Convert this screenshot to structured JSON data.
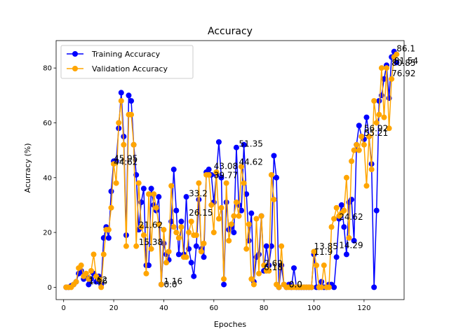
{
  "chart_data": {
    "type": "line",
    "title": "Accuracy",
    "xlabel": "Epoches",
    "ylabel": "Acurracy (%)",
    "xlim": [
      -3,
      136
    ],
    "ylim": [
      -4.5,
      90
    ],
    "x_ticks": [
      0,
      20,
      40,
      60,
      80,
      100,
      120
    ],
    "y_ticks": [
      0,
      20,
      40,
      60,
      80
    ],
    "grid": false,
    "legend_position": "top-left",
    "x": [
      1,
      2,
      3,
      4,
      5,
      6,
      7,
      8,
      9,
      10,
      11,
      12,
      13,
      14,
      15,
      16,
      17,
      18,
      19,
      20,
      21,
      22,
      23,
      24,
      25,
      26,
      27,
      28,
      29,
      30,
      31,
      32,
      33,
      34,
      35,
      36,
      37,
      38,
      39,
      40,
      41,
      42,
      43,
      44,
      45,
      46,
      47,
      48,
      49,
      50,
      51,
      52,
      53,
      54,
      55,
      56,
      57,
      58,
      59,
      60,
      61,
      62,
      63,
      64,
      65,
      66,
      67,
      68,
      69,
      70,
      71,
      72,
      73,
      74,
      75,
      76,
      77,
      78,
      79,
      80,
      81,
      82,
      83,
      84,
      85,
      86,
      87,
      88,
      89,
      90,
      91,
      92,
      93,
      94,
      95,
      96,
      97,
      98,
      99,
      100,
      101,
      102,
      103,
      104,
      105,
      106,
      107,
      108,
      109,
      110,
      111,
      112,
      113,
      114,
      115,
      116,
      117,
      118,
      119,
      120,
      121,
      122,
      123,
      124,
      125,
      126,
      127,
      128,
      129,
      130,
      131,
      132,
      133
    ],
    "series": [
      {
        "name": "Training Accuracy",
        "color": "#0000ff",
        "values": [
          0,
          0,
          0.5,
          1,
          2,
          5,
          6,
          3,
          4,
          1,
          3,
          5,
          2,
          4,
          1,
          18,
          22,
          18,
          35,
          46,
          46,
          58,
          71,
          55,
          19,
          70,
          68,
          52,
          41,
          21,
          31,
          36,
          8,
          8,
          36,
          30,
          28,
          33,
          1,
          16,
          12,
          10,
          24,
          43,
          28,
          12,
          24,
          12,
          33,
          14,
          9,
          4,
          15,
          32,
          14,
          11,
          42,
          43,
          41,
          31,
          41,
          53,
          40,
          1,
          31,
          21,
          22,
          20,
          51,
          30,
          28,
          52,
          34,
          17,
          27,
          2,
          11,
          12,
          26,
          6,
          15,
          8,
          15,
          48,
          40,
          0,
          8,
          1,
          0,
          1,
          0,
          7,
          0,
          0,
          0,
          0,
          0,
          0,
          0,
          12,
          0,
          0,
          2,
          0,
          0,
          1,
          1,
          0,
          11,
          25,
          30,
          22,
          12,
          31,
          32,
          17,
          52,
          59,
          55,
          54,
          62,
          55,
          45,
          0,
          28,
          68,
          70,
          76,
          81,
          69,
          84,
          86,
          82
        ]
      },
      {
        "name": "Validation Accuracy",
        "color": "#ffa500",
        "values": [
          0,
          0,
          0,
          1,
          2,
          7,
          8,
          4,
          5,
          3,
          6,
          12,
          4,
          3,
          0,
          12,
          21,
          21,
          29,
          45,
          38,
          60,
          68,
          52,
          15,
          63,
          63,
          52,
          15,
          38,
          22,
          19,
          5,
          34,
          14,
          34,
          29,
          23,
          1,
          21,
          9,
          13,
          37,
          22,
          20,
          18,
          22,
          11,
          11,
          20,
          24,
          19,
          19,
          38,
          13,
          16,
          41,
          41,
          30,
          20,
          42,
          25,
          29,
          3,
          38,
          17,
          23,
          26,
          31,
          26,
          44,
          38,
          14,
          23,
          3,
          1,
          25,
          5,
          26,
          8,
          6,
          6,
          41,
          32,
          1,
          0,
          15,
          1,
          0,
          0,
          0,
          0,
          0,
          0,
          0,
          0,
          0,
          0,
          0,
          13,
          8,
          0,
          0,
          8,
          0,
          0,
          22,
          25,
          29,
          26,
          27,
          28,
          40,
          18,
          46,
          50,
          52,
          50,
          55,
          52,
          37,
          55,
          43,
          68,
          60,
          63,
          80,
          62,
          80,
          58,
          76,
          84,
          85
        ]
      }
    ],
    "annotations": [
      {
        "text": "86.1",
        "x": 133,
        "y": 86.1
      },
      {
        "text": "81.54",
        "x": 132,
        "y": 81.54
      },
      {
        "text": "80.85",
        "x": 131,
        "y": 80.85
      },
      {
        "text": "76.92",
        "x": 131,
        "y": 76.92
      },
      {
        "text": "56.92",
        "x": 120,
        "y": 56.92
      },
      {
        "text": "55.21",
        "x": 120,
        "y": 55.21
      },
      {
        "text": "51.35",
        "x": 70,
        "y": 51.35
      },
      {
        "text": "45.95",
        "x": 20,
        "y": 45.95
      },
      {
        "text": "44.62",
        "x": 20,
        "y": 44.62
      },
      {
        "text": "44.62",
        "x": 70,
        "y": 44.62
      },
      {
        "text": "43.08",
        "x": 60,
        "y": 43.08
      },
      {
        "text": "39.77",
        "x": 60,
        "y": 39.77
      },
      {
        "text": "33.2",
        "x": 50,
        "y": 33.2
      },
      {
        "text": "26.15",
        "x": 50,
        "y": 26.15
      },
      {
        "text": "24.62",
        "x": 110,
        "y": 24.62
      },
      {
        "text": "21.62",
        "x": 30,
        "y": 21.62
      },
      {
        "text": "15.38",
        "x": 30,
        "y": 15.38
      },
      {
        "text": "14.29",
        "x": 110,
        "y": 14.29
      },
      {
        "text": "13.85",
        "x": 100,
        "y": 13.85
      },
      {
        "text": "11.9",
        "x": 100,
        "y": 11.9
      },
      {
        "text": "7.69",
        "x": 80,
        "y": 7.69
      },
      {
        "text": "6.18",
        "x": 80,
        "y": 6.18
      },
      {
        "text": "1.62",
        "x": 10,
        "y": 1.62
      },
      {
        "text": "1.16",
        "x": 10,
        "y": 1.16
      },
      {
        "text": "1.16",
        "x": 40,
        "y": 1.16
      },
      {
        "text": "0.0",
        "x": 40,
        "y": 0.0
      },
      {
        "text": "0.0",
        "x": 90,
        "y": 0.0
      },
      {
        "text": "0.0",
        "x": 90,
        "y": 0.0
      }
    ]
  }
}
